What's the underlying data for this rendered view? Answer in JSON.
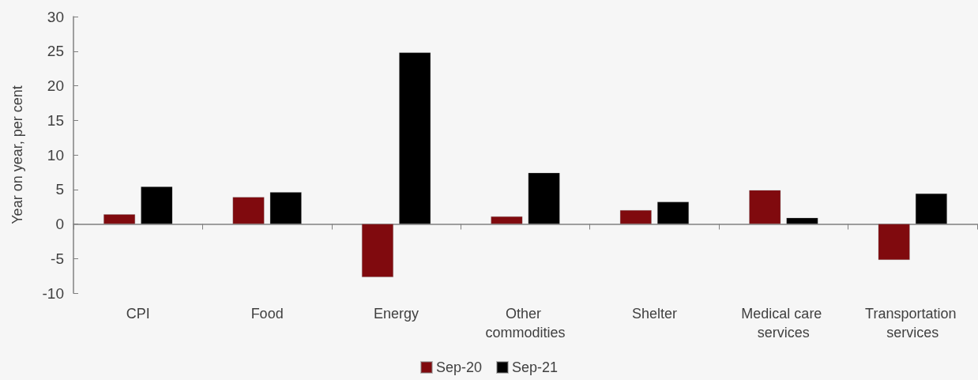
{
  "chart_data": {
    "type": "bar",
    "ylabel": "Year on year, per cent",
    "categories": [
      "CPI",
      "Food",
      "Energy",
      "Other commodities",
      "Shelter",
      "Medical care services",
      "Transportation services"
    ],
    "series": [
      {
        "name": "Sep-20",
        "color": "#800a0e",
        "values": [
          1.4,
          3.9,
          -7.7,
          1.1,
          2.0,
          4.9,
          -5.2
        ]
      },
      {
        "name": "Sep-21",
        "color": "#000000",
        "values": [
          5.4,
          4.6,
          24.8,
          7.4,
          3.2,
          0.9,
          4.4
        ]
      }
    ],
    "ylim": [
      -10,
      30
    ],
    "yticks": [
      -10,
      -5,
      0,
      5,
      10,
      15,
      20,
      25,
      30
    ],
    "legend": "bottom"
  }
}
